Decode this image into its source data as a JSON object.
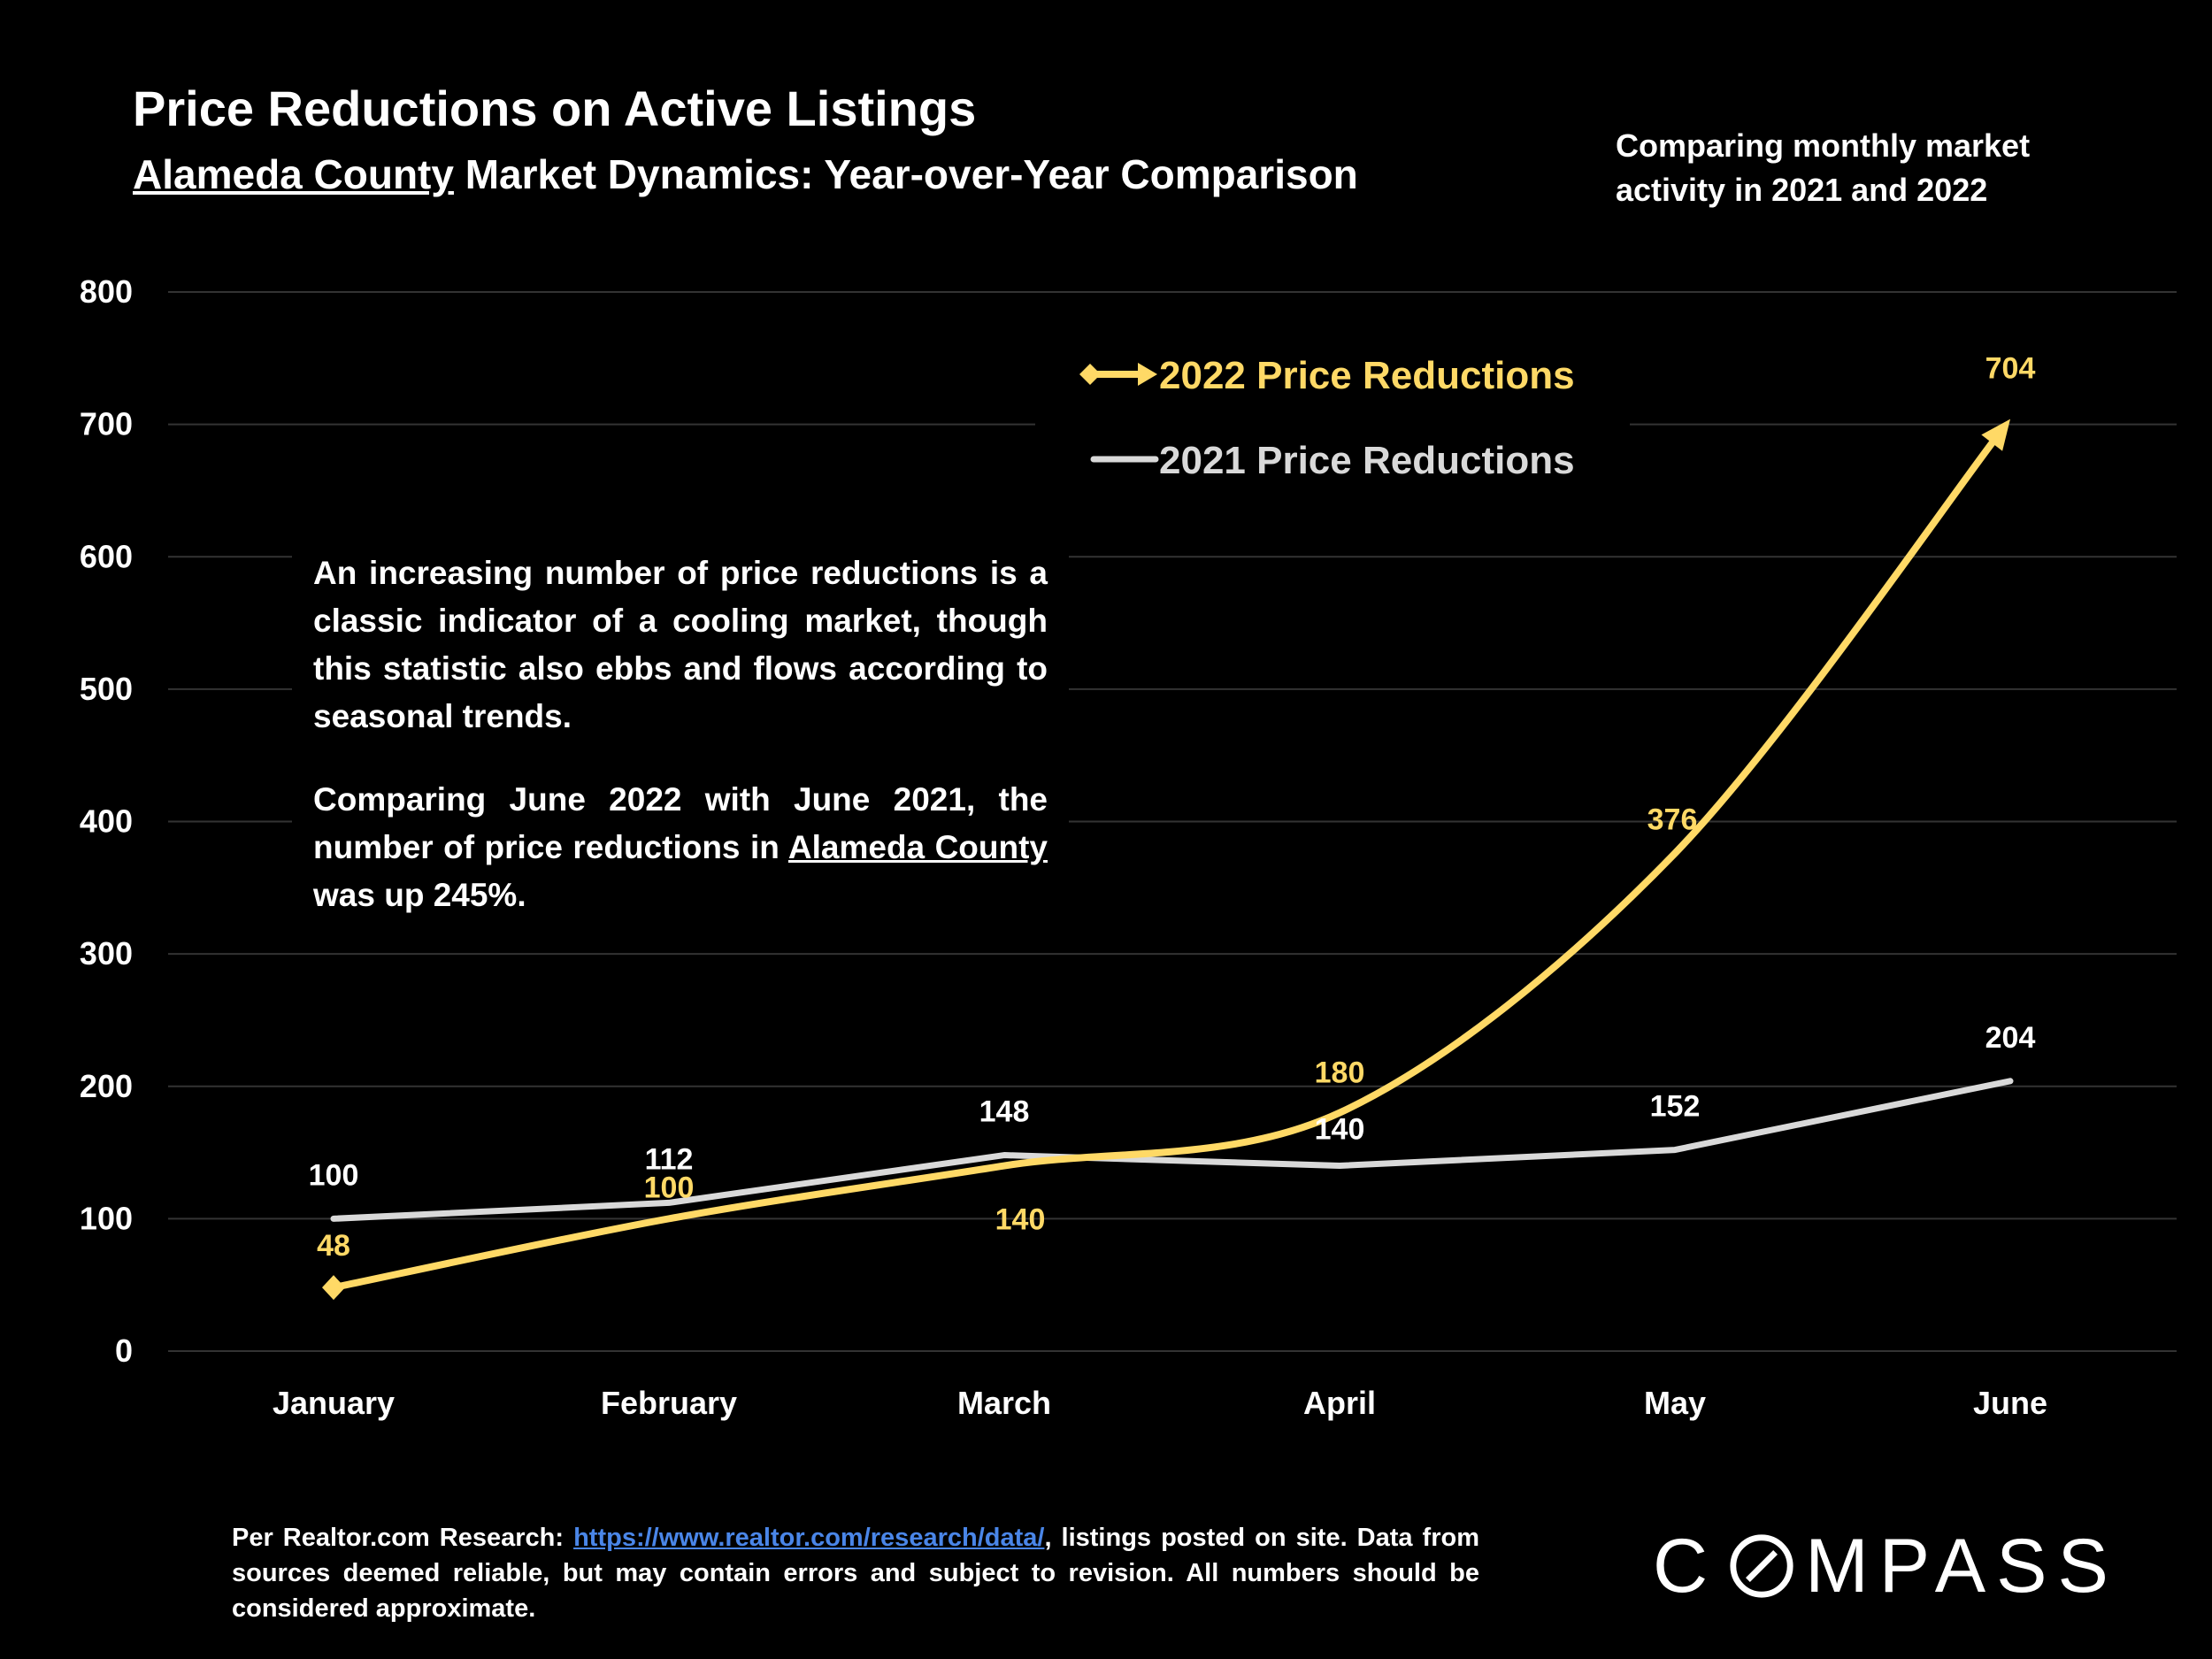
{
  "title": "Price Reductions on Active Listings",
  "subtitle": {
    "region": "Alameda County",
    "rest": " Market Dynamics: Year-over-Year Comparison"
  },
  "top_note": "Comparing monthly market activity in 2021 and 2022",
  "annotation": {
    "p1": "An increasing number of price reductions is a classic indicator of a cooling market, though this statistic also ebbs and flows according to seasonal trends.",
    "p2_before": "Comparing June 2022 with June 2021, the number of price reductions in ",
    "p2_region": "Alameda County",
    "p2_after": " was up 245%."
  },
  "source": {
    "prefix": "Per Realtor.com Research: ",
    "link": "https://www.realtor.com/research/data/",
    "suffix": ", listings posted on site. Data from sources deemed reliable, but may contain errors and subject to revision. All numbers should be considered approximate."
  },
  "logo": {
    "before": "C",
    "after": "MPASS"
  },
  "colors": {
    "background": "#000000",
    "series_2022": "#FFD966",
    "series_2021": "#D9D9D9",
    "gridline": "#333333",
    "link": "#4A86E8"
  },
  "chart_data": {
    "type": "line",
    "categories": [
      "January",
      "February",
      "March",
      "April",
      "May",
      "June"
    ],
    "ylim": [
      0,
      800
    ],
    "yticks": [
      0,
      100,
      200,
      300,
      400,
      500,
      600,
      700,
      800
    ],
    "grid": true,
    "legend_position": "top-right",
    "series": [
      {
        "name": "2022 Price Reductions",
        "values": [
          48,
          100,
          140,
          180,
          376,
          704
        ],
        "color": "#FFD966",
        "marker_start": "diamond",
        "marker_end": "arrow"
      },
      {
        "name": "2021 Price Reductions",
        "values": [
          100,
          112,
          148,
          140,
          152,
          204
        ],
        "color": "#D9D9D9"
      }
    ]
  }
}
